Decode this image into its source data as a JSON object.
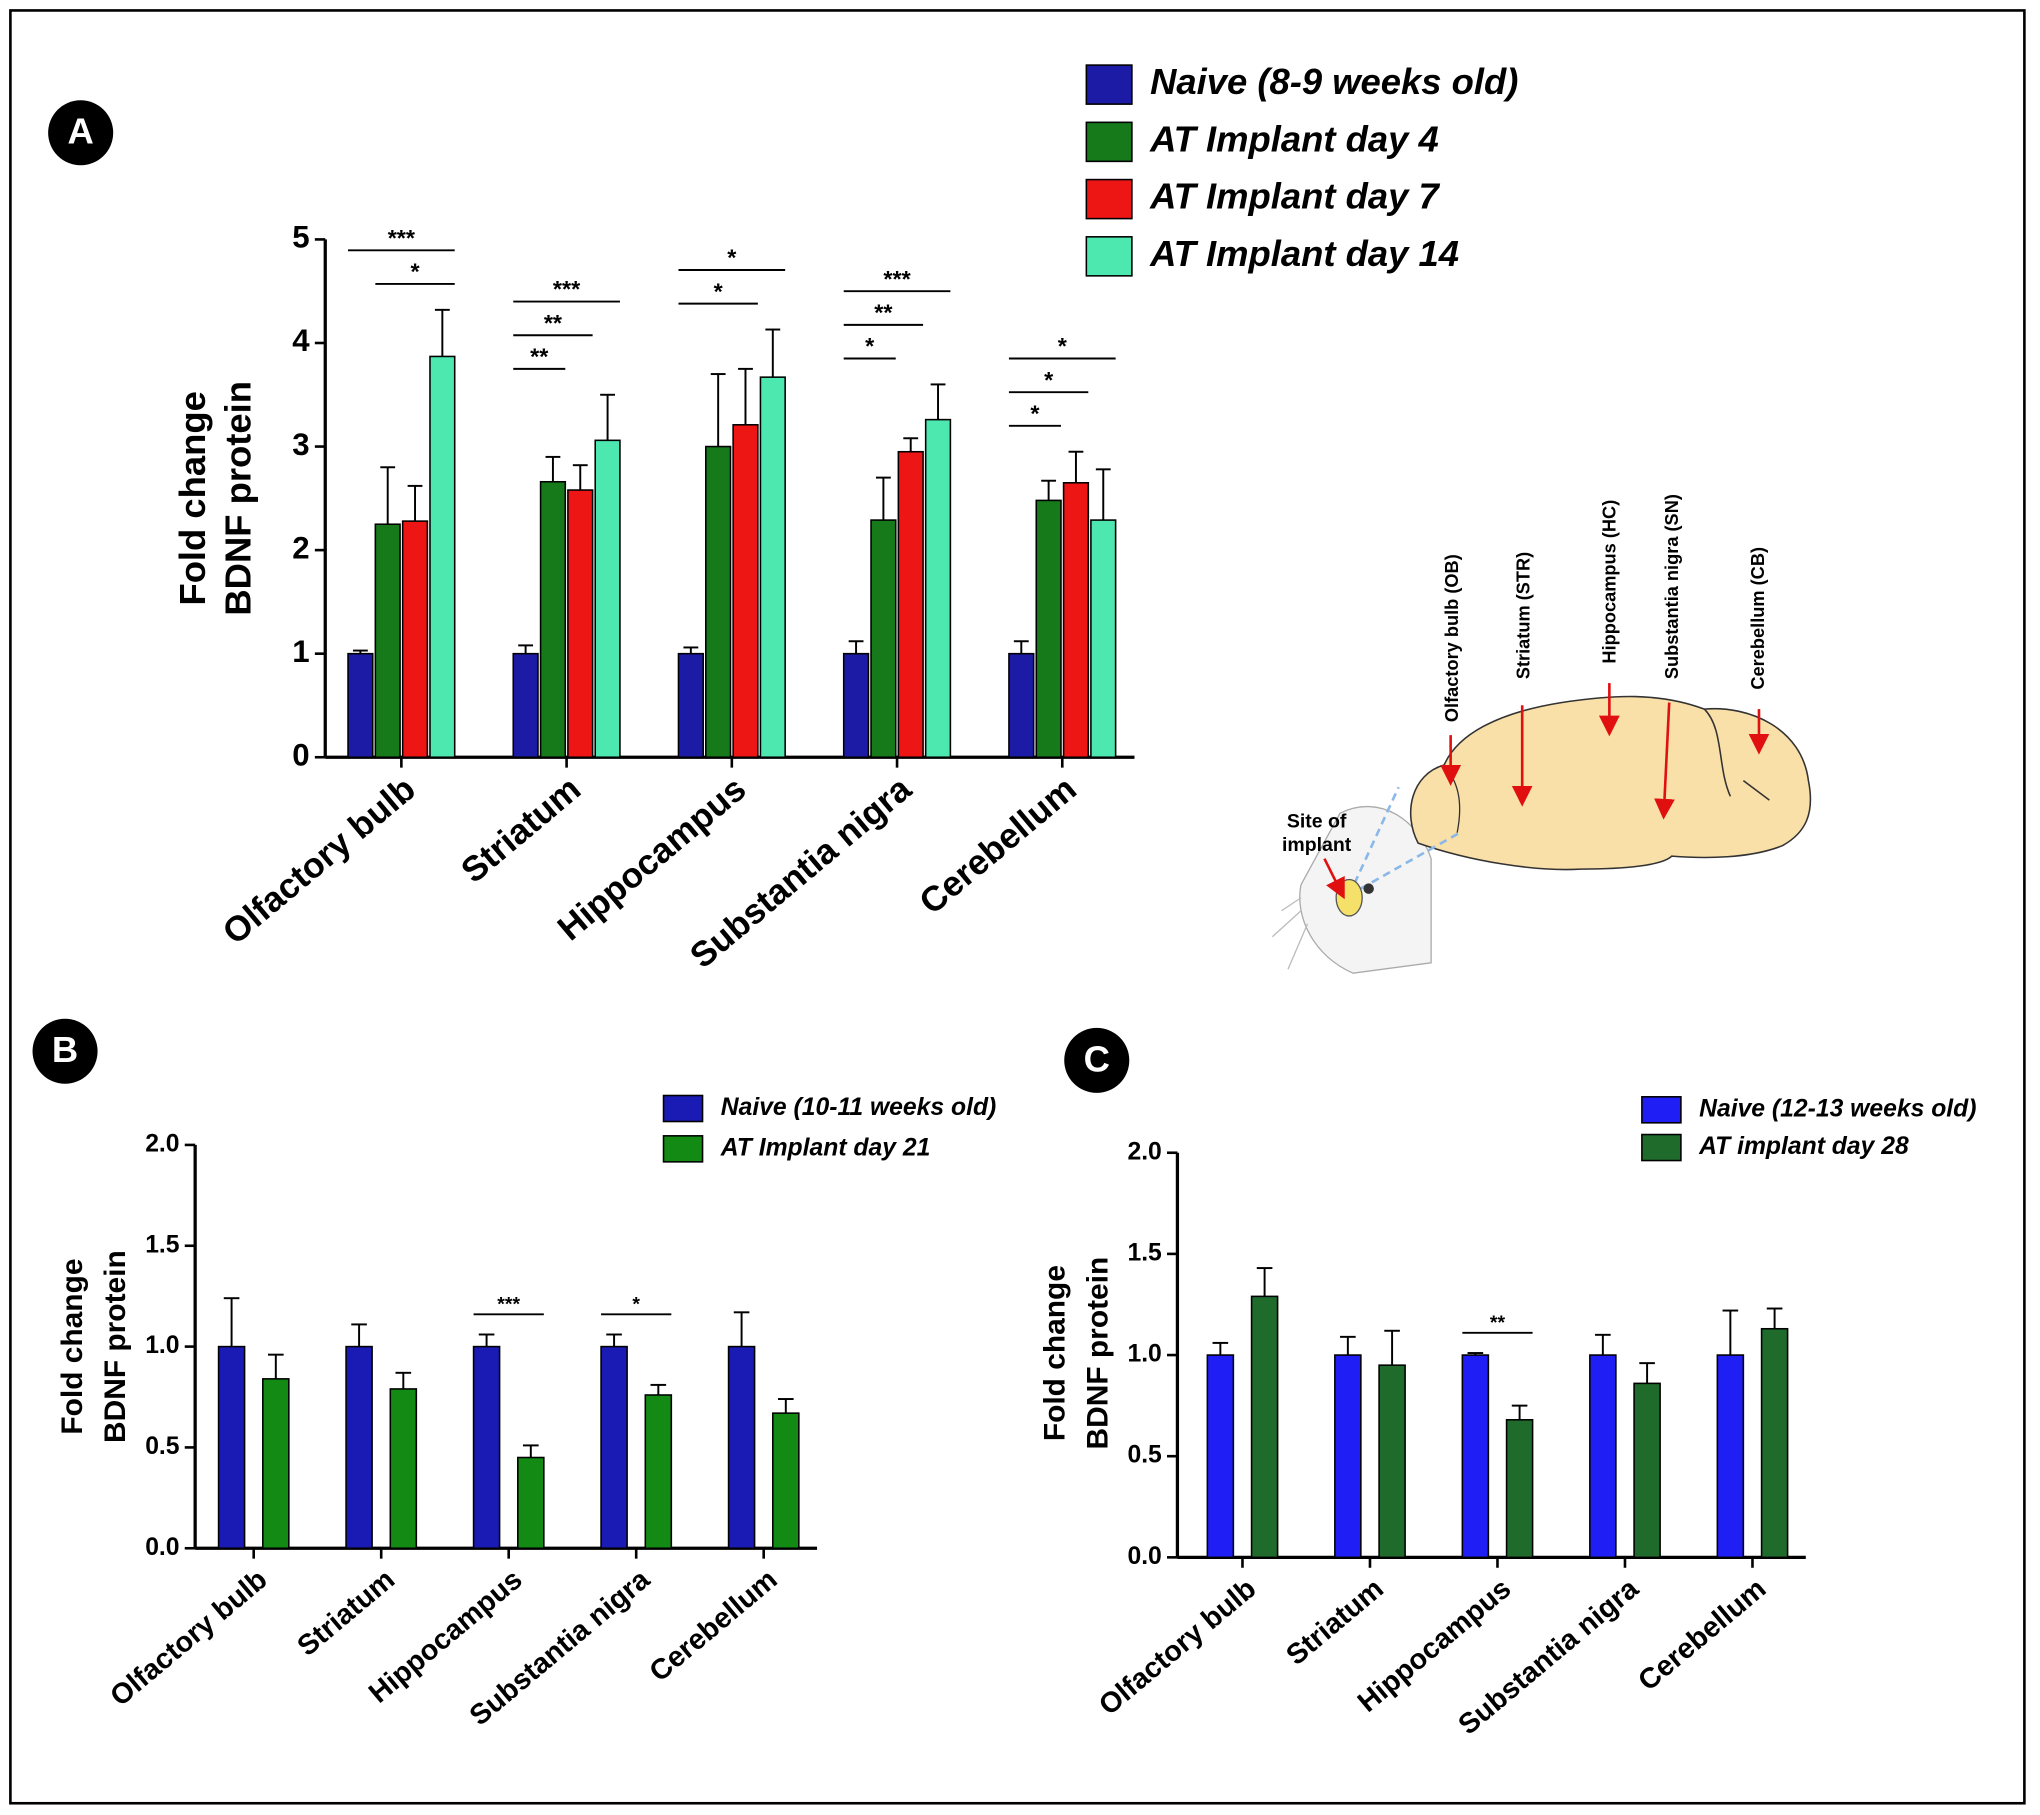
{
  "chart_data": [
    {
      "type": "bar",
      "panel": "A",
      "ylabel": [
        "Fold change",
        "BDNF protein"
      ],
      "categories": [
        "Olfactory bulb",
        "Striatum",
        "Hippocampus",
        "Substantia nigra",
        "Cerebellum"
      ],
      "series": [
        {
          "name": "Naive (8-9 weeks old)",
          "color": "#1b1ba6",
          "values": [
            1,
            1,
            1,
            1,
            1
          ],
          "errors": [
            0.03,
            0.08,
            0.06,
            0.12,
            0.12
          ]
        },
        {
          "name": "AT Implant day 4",
          "color": "#16791a",
          "values": [
            2.25,
            2.66,
            3.0,
            2.29,
            2.48
          ],
          "errors": [
            0.55,
            0.24,
            0.7,
            0.41,
            0.19
          ]
        },
        {
          "name": "AT Implant day 7",
          "color": "#ee1515",
          "values": [
            2.28,
            2.58,
            3.21,
            2.95,
            2.65
          ],
          "errors": [
            0.34,
            0.24,
            0.54,
            0.13,
            0.3
          ]
        },
        {
          "name": "AT Implant day 14",
          "color": "#4de8b0",
          "values": [
            3.87,
            3.06,
            3.67,
            3.26,
            2.29
          ],
          "errors": [
            0.45,
            0.44,
            0.46,
            0.34,
            0.49
          ]
        }
      ],
      "ylim": [
        0,
        5
      ],
      "yticks": [
        0,
        1,
        2,
        3,
        4,
        5
      ],
      "comparisons": [
        {
          "group": 0,
          "series": [
            1,
            3
          ],
          "label": "*"
        },
        {
          "group": 0,
          "series": [
            0,
            3
          ],
          "label": "***"
        },
        {
          "group": 1,
          "series": [
            0,
            1
          ],
          "label": "**"
        },
        {
          "group": 1,
          "series": [
            0,
            2
          ],
          "label": "**"
        },
        {
          "group": 1,
          "series": [
            0,
            3
          ],
          "label": "***"
        },
        {
          "group": 2,
          "series": [
            0,
            2
          ],
          "label": "*"
        },
        {
          "group": 2,
          "series": [
            0,
            3
          ],
          "label": "*"
        },
        {
          "group": 3,
          "series": [
            0,
            1
          ],
          "label": "*"
        },
        {
          "group": 3,
          "series": [
            0,
            2
          ],
          "label": "**"
        },
        {
          "group": 3,
          "series": [
            0,
            3
          ],
          "label": "***"
        },
        {
          "group": 4,
          "series": [
            0,
            1
          ],
          "label": "*"
        },
        {
          "group": 4,
          "series": [
            0,
            2
          ],
          "label": "*"
        },
        {
          "group": 4,
          "series": [
            0,
            3
          ],
          "label": "*"
        }
      ]
    },
    {
      "type": "bar",
      "panel": "B",
      "ylabel": [
        "Fold change",
        "BDNF protein"
      ],
      "categories": [
        "Olfactory bulb",
        "Striatum",
        "Hippocampus",
        "Substantia nigra",
        "Cerebellum"
      ],
      "series": [
        {
          "name": "Naive (10-11 weeks old)",
          "color": "#1a1ab4",
          "values": [
            1,
            1,
            1,
            1,
            1
          ],
          "errors": [
            0.24,
            0.11,
            0.06,
            0.06,
            0.17
          ]
        },
        {
          "name": "AT Implant day 21",
          "color": "#138a13",
          "values": [
            0.84,
            0.79,
            0.45,
            0.76,
            0.67
          ],
          "errors": [
            0.12,
            0.08,
            0.06,
            0.05,
            0.07
          ]
        }
      ],
      "ylim": [
        0,
        2
      ],
      "yticks": [
        {
          "value": 0,
          "label": "0.0"
        },
        {
          "value": 0.5,
          "label": "0.5"
        },
        {
          "value": 1,
          "label": "1.0"
        },
        {
          "value": 1.5,
          "label": "1.5"
        },
        {
          "value": 2,
          "label": "2.0"
        }
      ],
      "comparisons": [
        {
          "group": 2,
          "series": [
            0,
            1
          ],
          "label": "***"
        },
        {
          "group": 3,
          "series": [
            0,
            1
          ],
          "label": "*"
        }
      ]
    },
    {
      "type": "bar",
      "panel": "C",
      "ylabel": [
        "Fold change",
        "BDNF protein"
      ],
      "categories": [
        "Olfactory bulb",
        "Striatum",
        "Hippocampus",
        "Substantia nigra",
        "Cerebellum"
      ],
      "series": [
        {
          "name": "Naive (12-13 weeks old)",
          "color": "#1f1ff5",
          "values": [
            1,
            1,
            1,
            1,
            1
          ],
          "errors": [
            0.06,
            0.09,
            0.01,
            0.1,
            0.22
          ]
        },
        {
          "name": "AT implant day 28",
          "color": "#1f6b2c",
          "values": [
            1.29,
            0.95,
            0.68,
            0.86,
            1.13
          ],
          "errors": [
            0.14,
            0.17,
            0.07,
            0.1,
            0.1
          ]
        }
      ],
      "ylim": [
        0,
        2
      ],
      "yticks": [
        {
          "value": 0,
          "label": "0.0"
        },
        {
          "value": 0.5,
          "label": "0.5"
        },
        {
          "value": 1,
          "label": "1.0"
        },
        {
          "value": 1.5,
          "label": "1.5"
        },
        {
          "value": 2,
          "label": "2.0"
        }
      ],
      "comparisons": [
        {
          "group": 2,
          "series": [
            0,
            1
          ],
          "label": "**"
        }
      ]
    }
  ],
  "diagram": {
    "regions": [
      "Olfactory bulb (OB)",
      "Striatum (STR)",
      "Hippocampus (HC)",
      "Substantia nigra (SN)",
      "Cerebellum (CB)"
    ],
    "site_label": [
      "Site of",
      "implant"
    ]
  }
}
